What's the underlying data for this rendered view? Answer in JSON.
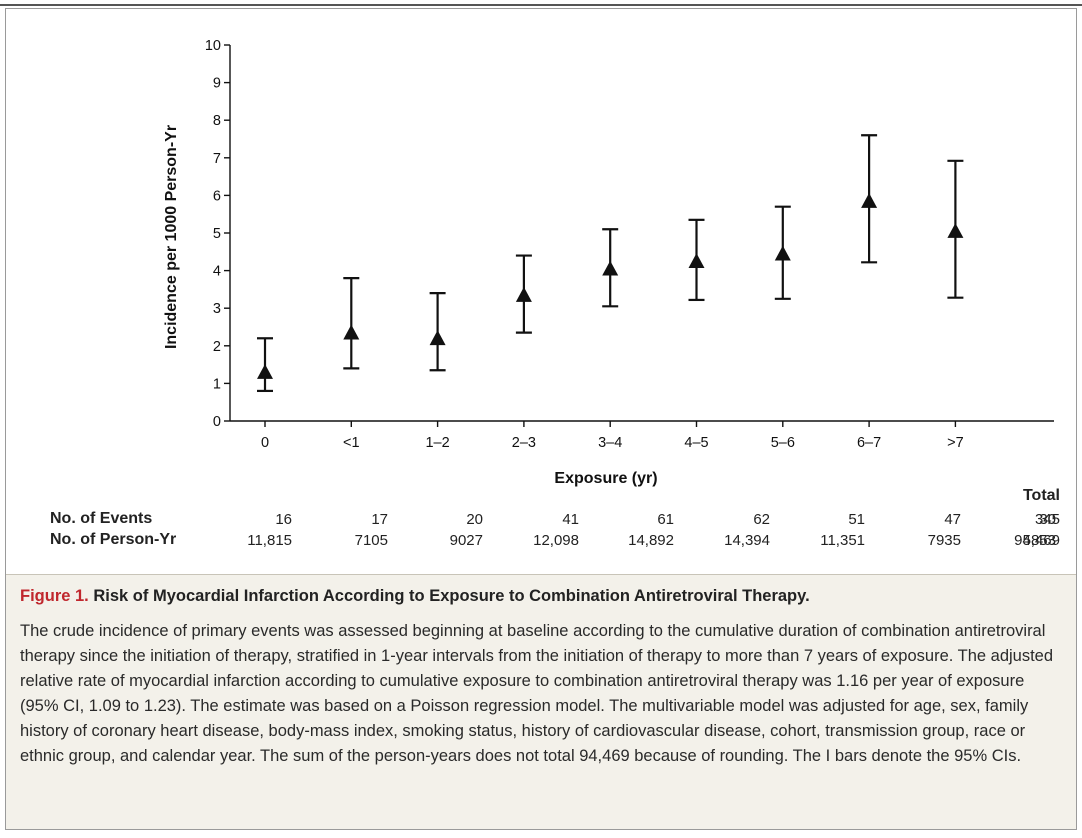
{
  "chart_data": {
    "type": "scatter",
    "ylabel": "Incidence per 1000 Person-Yr",
    "xlabel": "Exposure (yr)",
    "ylim": [
      0,
      10
    ],
    "yticks": [
      0,
      1,
      2,
      3,
      4,
      5,
      6,
      7,
      8,
      9,
      10
    ],
    "categories": [
      "0",
      "<1",
      "1–2",
      "2–3",
      "3–4",
      "4–5",
      "5–6",
      "6–7",
      ">7"
    ],
    "values": [
      1.3,
      2.35,
      2.2,
      3.35,
      4.05,
      4.25,
      4.45,
      5.85,
      5.05
    ],
    "ci_lower": [
      0.8,
      1.4,
      1.35,
      2.35,
      3.05,
      3.22,
      3.25,
      4.22,
      3.28
    ],
    "ci_upper": [
      2.2,
      3.8,
      3.4,
      4.4,
      5.1,
      5.35,
      5.7,
      7.6,
      6.92
    ],
    "marker": "triangle",
    "marker_color": "#111111",
    "grid": false
  },
  "table": {
    "total_header": "Total",
    "rows": [
      {
        "label": "No. of Events",
        "values": [
          "16",
          "17",
          "20",
          "41",
          "61",
          "62",
          "51",
          "47",
          "30"
        ],
        "total": "345"
      },
      {
        "label": "No. of Person-Yr",
        "values": [
          "11,815",
          "7105",
          "9027",
          "12,098",
          "14,892",
          "14,394",
          "11,351",
          "7935",
          "5853"
        ],
        "total": "94,469"
      }
    ]
  },
  "caption": {
    "figure_number": "Figure 1.",
    "title": "Risk of Myocardial Infarction According to Exposure to Combination Antiretroviral Therapy.",
    "body": "The crude incidence of primary events was assessed beginning at baseline according to the cumulative duration of combination antiretroviral therapy since the initiation of therapy, stratified in 1-year intervals from the initiation of therapy to more than 7 years of exposure. The adjusted relative rate of myocardial infarction according to cumulative exposure to combination antiretroviral therapy was 1.16 per year of exposure (95% CI, 1.09 to 1.23). The estimate was based on a Poisson regression model. The multivariable model was adjusted for age, sex, family history of coronary heart disease, body-mass index, smoking status, history of cardiovascular disease, cohort, transmission group, race or ethnic group, and calendar year. The sum of the person-years does not total 94,469 because of rounding. The I bars denote the 95% CIs."
  },
  "colors": {
    "caption_background": "#f3f1ea",
    "figure_number": "#c0272d",
    "ink": "#111111"
  }
}
